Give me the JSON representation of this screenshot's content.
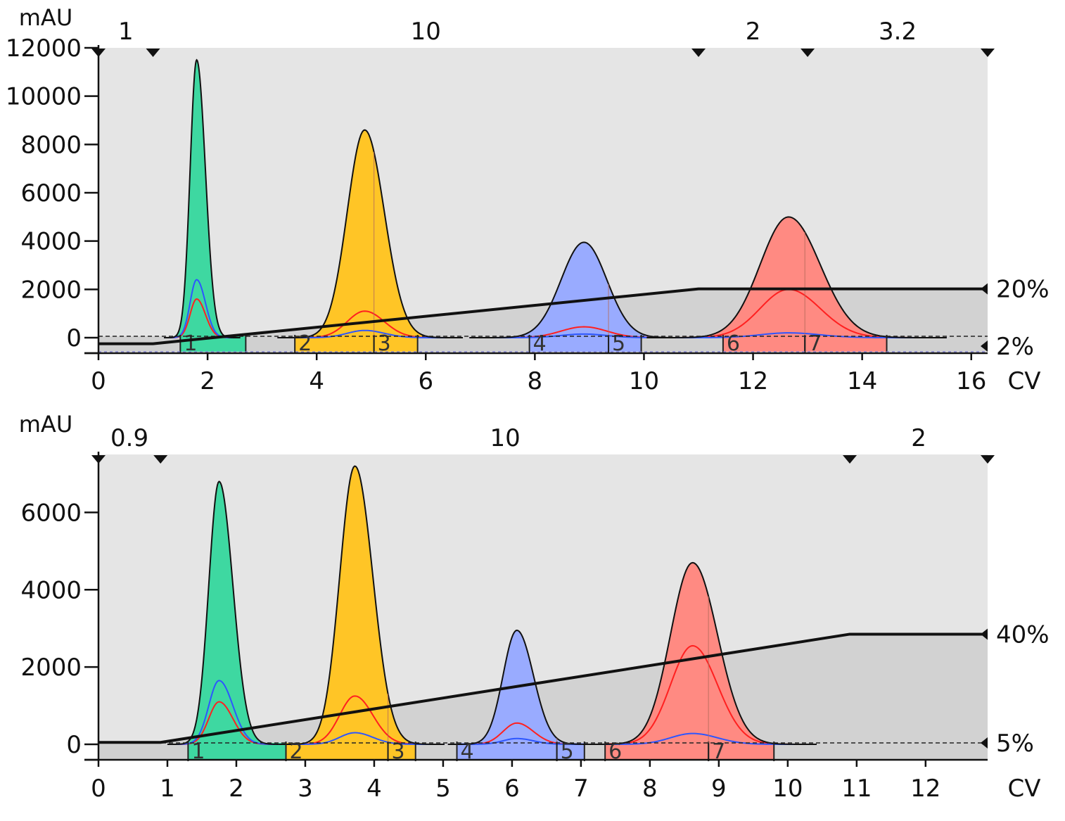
{
  "chart_data": [
    {
      "type": "area",
      "ylabel": "mAU",
      "xlabel": "CV",
      "xlim": [
        0,
        16.3
      ],
      "ylim": [
        -600,
        12000
      ],
      "x_ticks": [
        0,
        2,
        4,
        6,
        8,
        10,
        12,
        14,
        16
      ],
      "y_ticks": [
        0,
        2000,
        4000,
        6000,
        8000,
        10000,
        12000
      ],
      "segments": [
        {
          "label": "1",
          "start": 0,
          "end": 1
        },
        {
          "label": "10",
          "start": 1,
          "end": 11
        },
        {
          "label": "2",
          "start": 11,
          "end": 13
        },
        {
          "label": "3.2",
          "start": 13,
          "end": 16.3
        }
      ],
      "gradient": {
        "low_label": "2%",
        "high_label": "20%",
        "low_y": -250,
        "high_y": 2020,
        "points": [
          [
            0,
            -250
          ],
          [
            1,
            -250
          ],
          [
            11,
            2020
          ],
          [
            16.3,
            2020
          ]
        ]
      },
      "peaks": [
        {
          "center": 1.8,
          "height": 11500,
          "sigma_left": 0.12,
          "sigma_right": 0.16,
          "color": "#3ed8a1",
          "red": 1600,
          "blue": 2400,
          "fill_start": 1.5,
          "fill_end": 2.7,
          "fractions": [
            {
              "label": "1",
              "start": 1.5,
              "end": 2.7
            }
          ]
        },
        {
          "center": 4.88,
          "height": 8600,
          "sigma_left": 0.32,
          "sigma_right": 0.36,
          "color": "#ffc526",
          "red": 1100,
          "blue": 300,
          "fill_start": 3.6,
          "fill_end": 5.85,
          "fractions": [
            {
              "label": "2",
              "start": 3.6,
              "end": 5.05
            },
            {
              "label": "3",
              "start": 5.05,
              "end": 5.85
            }
          ]
        },
        {
          "center": 8.9,
          "height": 3950,
          "sigma_left": 0.42,
          "sigma_right": 0.42,
          "color": "#99abff",
          "red": 450,
          "blue": 150,
          "fill_start": 7.9,
          "fill_end": 9.95,
          "fractions": [
            {
              "label": "4",
              "start": 7.9,
              "end": 9.35
            },
            {
              "label": "5",
              "start": 9.35,
              "end": 9.95
            }
          ]
        },
        {
          "center": 12.65,
          "height": 5000,
          "sigma_left": 0.52,
          "sigma_right": 0.58,
          "color": "#ff8a82",
          "red": 2000,
          "blue": 200,
          "fill_start": 11.45,
          "fill_end": 14.45,
          "fractions": [
            {
              "label": "6",
              "start": 11.45,
              "end": 12.95
            },
            {
              "label": "7",
              "start": 12.95,
              "end": 14.45
            }
          ]
        }
      ]
    },
    {
      "type": "area",
      "ylabel": "mAU",
      "xlabel": "CV",
      "xlim": [
        0,
        12.9
      ],
      "ylim": [
        -400,
        7500
      ],
      "x_ticks": [
        0,
        1,
        2,
        3,
        4,
        5,
        6,
        7,
        8,
        9,
        10,
        11,
        12
      ],
      "y_ticks": [
        0,
        2000,
        4000,
        6000
      ],
      "segments": [
        {
          "label": "0.9",
          "start": 0,
          "end": 0.9
        },
        {
          "label": "10",
          "start": 0.9,
          "end": 10.9
        },
        {
          "label": "2",
          "start": 10.9,
          "end": 12.9
        }
      ],
      "gradient": {
        "low_label": "5%",
        "high_label": "40%",
        "low_y": 50,
        "high_y": 2850,
        "points": [
          [
            0,
            50
          ],
          [
            0.9,
            50
          ],
          [
            10.9,
            2850
          ],
          [
            12.9,
            2850
          ]
        ]
      },
      "peaks": [
        {
          "center": 1.75,
          "height": 6800,
          "sigma_left": 0.15,
          "sigma_right": 0.2,
          "color": "#3ed8a1",
          "red": 1100,
          "blue": 1650,
          "fill_start": 1.3,
          "fill_end": 2.72,
          "fractions": [
            {
              "label": "1",
              "start": 1.3,
              "end": 2.72
            }
          ]
        },
        {
          "center": 3.72,
          "height": 7200,
          "sigma_left": 0.22,
          "sigma_right": 0.26,
          "color": "#ffc526",
          "red": 1250,
          "blue": 300,
          "fill_start": 2.72,
          "fill_end": 4.6,
          "fractions": [
            {
              "label": "2",
              "start": 2.72,
              "end": 4.2
            },
            {
              "label": "3",
              "start": 4.2,
              "end": 4.6
            }
          ]
        },
        {
          "center": 6.07,
          "height": 2950,
          "sigma_left": 0.2,
          "sigma_right": 0.24,
          "color": "#99abff",
          "red": 550,
          "blue": 150,
          "fill_start": 5.2,
          "fill_end": 7.05,
          "fractions": [
            {
              "label": "4",
              "start": 5.2,
              "end": 6.65
            },
            {
              "label": "5",
              "start": 6.65,
              "end": 7.05
            }
          ]
        },
        {
          "center": 8.62,
          "height": 4700,
          "sigma_left": 0.32,
          "sigma_right": 0.36,
          "color": "#ff8a82",
          "red": 2550,
          "blue": 280,
          "fill_start": 7.35,
          "fill_end": 9.8,
          "fractions": [
            {
              "label": "6",
              "start": 7.35,
              "end": 8.85
            },
            {
              "label": "7",
              "start": 8.85,
              "end": 9.8
            }
          ]
        }
      ]
    }
  ]
}
